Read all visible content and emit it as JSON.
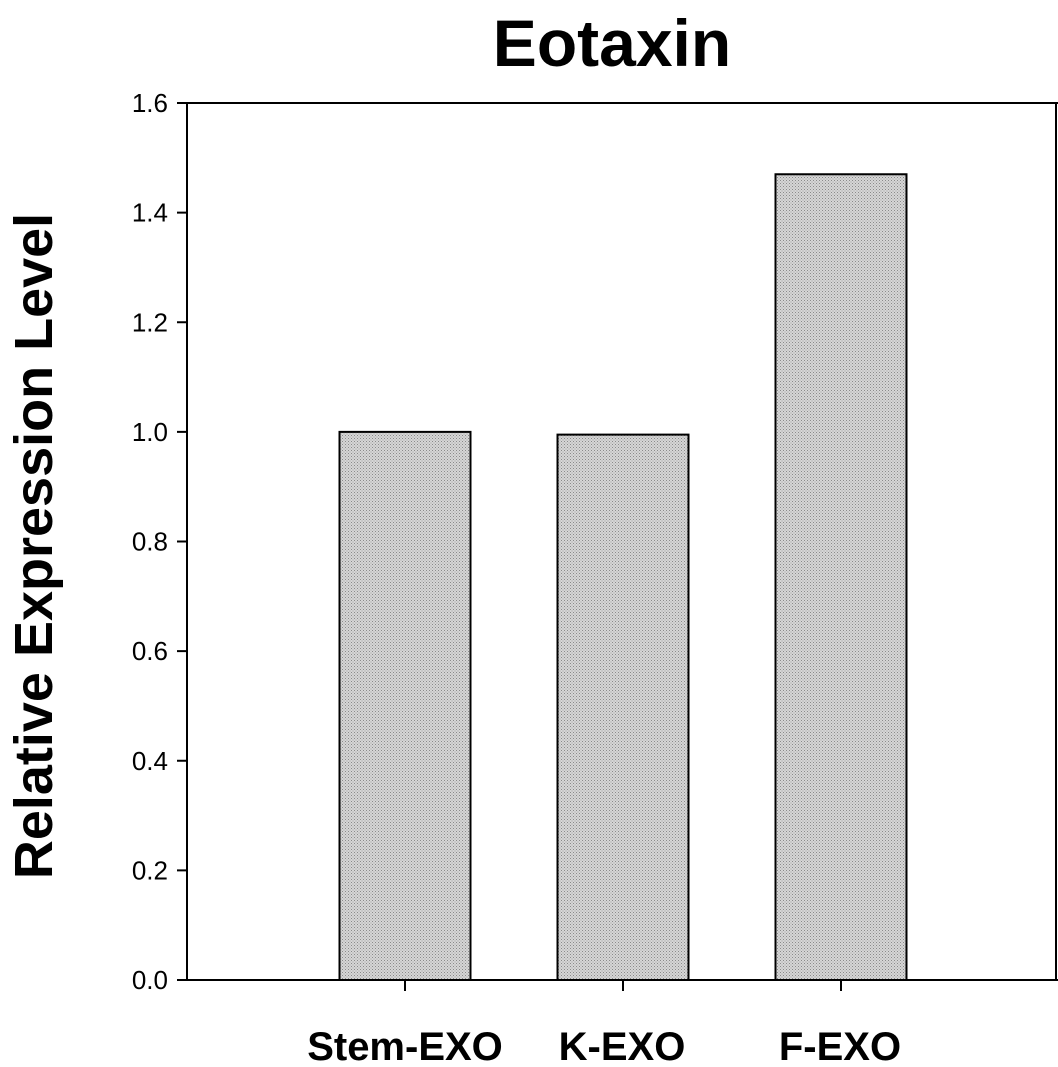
{
  "chart_data": {
    "type": "bar",
    "title": "Eotaxin",
    "ylabel": "Relative Expression Level",
    "xlabel": "",
    "categories": [
      "Stem-EXO",
      "K-EXO",
      "F-EXO"
    ],
    "values": [
      1.0,
      0.995,
      1.47
    ],
    "ylim": [
      0.0,
      1.6
    ],
    "yticks": [
      "0.0",
      "0.2",
      "0.4",
      "0.6",
      "0.8",
      "1.0",
      "1.2",
      "1.4",
      "1.6"
    ],
    "grid": false,
    "legend": "none",
    "colors": {
      "bar_fill": "#c8c8c8",
      "bar_stroke": "#000000",
      "axis": "#000000"
    }
  }
}
